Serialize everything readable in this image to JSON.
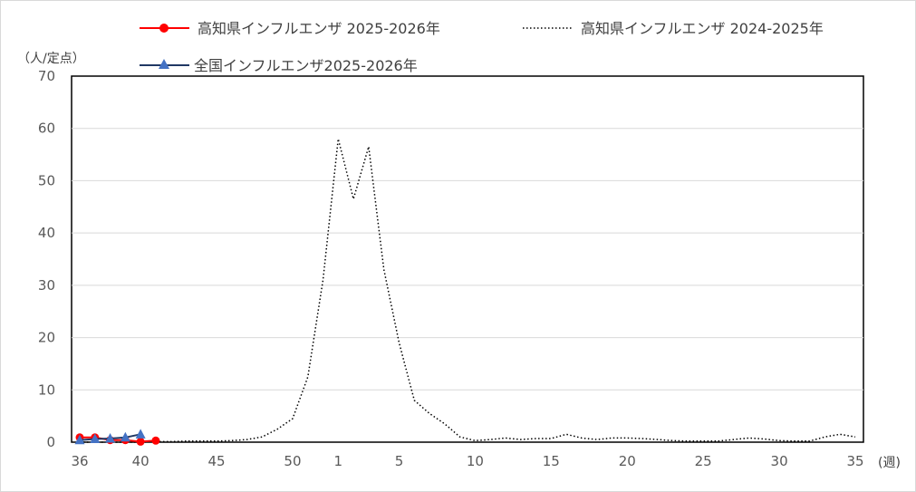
{
  "chart_data": {
    "type": "line",
    "ylabel": "（人/定点）",
    "xlabel": "(週)",
    "ylim": [
      0,
      70
    ],
    "yticks": [
      "0",
      "10",
      "20",
      "30",
      "40",
      "50",
      "60",
      "70"
    ],
    "weeks": [
      36,
      37,
      38,
      39,
      40,
      41,
      42,
      43,
      44,
      45,
      46,
      47,
      48,
      49,
      50,
      51,
      52,
      1,
      2,
      3,
      4,
      5,
      6,
      7,
      8,
      9,
      10,
      11,
      12,
      13,
      14,
      15,
      16,
      17,
      18,
      19,
      20,
      21,
      22,
      23,
      24,
      25,
      26,
      27,
      28,
      29,
      30,
      31,
      32,
      33,
      34,
      35
    ],
    "xtick_labels": [
      {
        "index": 0,
        "label": "36"
      },
      {
        "index": 4,
        "label": "40"
      },
      {
        "index": 9,
        "label": "45"
      },
      {
        "index": 14,
        "label": "50"
      },
      {
        "index": 17,
        "label": "1"
      },
      {
        "index": 21,
        "label": "5"
      },
      {
        "index": 26,
        "label": "10"
      },
      {
        "index": 31,
        "label": "15"
      },
      {
        "index": 36,
        "label": "20"
      },
      {
        "index": 41,
        "label": "25"
      },
      {
        "index": 46,
        "label": "30"
      },
      {
        "index": 51,
        "label": "35"
      }
    ],
    "grid": true,
    "legend_position": "top",
    "series": [
      {
        "name": "高知県インフルエンザ 2025-2026年",
        "color": "#ff0000",
        "marker": "circle",
        "style": "solid",
        "values": [
          0.9,
          0.9,
          0.4,
          0.4,
          0.1,
          0.3
        ]
      },
      {
        "name": "高知県インフルエンザ 2024-2025年",
        "color": "#000000",
        "marker": "none",
        "style": "dotted",
        "values": [
          0.0,
          0.0,
          0.0,
          0.0,
          0.0,
          0.1,
          0.1,
          0.2,
          0.2,
          0.2,
          0.3,
          0.5,
          1.0,
          2.5,
          4.5,
          12.5,
          31.0,
          58.0,
          46.5,
          56.5,
          33.0,
          19.0,
          8.0,
          5.5,
          3.5,
          1.0,
          0.3,
          0.5,
          0.8,
          0.5,
          0.7,
          0.7,
          1.5,
          0.8,
          0.5,
          0.8,
          0.8,
          0.7,
          0.5,
          0.3,
          0.2,
          0.2,
          0.2,
          0.5,
          0.8,
          0.6,
          0.3,
          0.2,
          0.2,
          1.0,
          1.5,
          1.0
        ]
      },
      {
        "name": "全国インフルエンザ2025-2026年",
        "color": "#4472c4",
        "marker": "triangle",
        "style": "solid",
        "values": [
          0.4,
          0.6,
          0.7,
          0.9,
          1.5
        ]
      }
    ]
  }
}
